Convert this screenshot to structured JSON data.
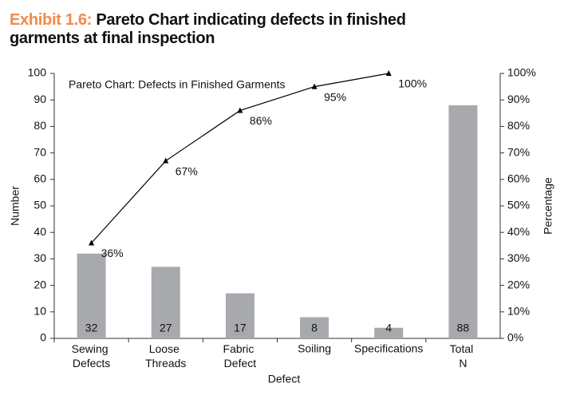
{
  "chart_data": {
    "type": "bar",
    "title_prefix": "Exhibit 1.6:",
    "title": "Pareto Chart indicating defects in finished garments at final inspection",
    "inner_title": "Pareto Chart: Defects in Finished Garments",
    "x_label": "Defect",
    "y_label": "Number",
    "y2_label": "Percentage",
    "categories": [
      "Sewing Defects",
      "Loose Threads",
      "Fabric Defect",
      "Soiling",
      "Specifications",
      "Total N"
    ],
    "series": [
      {
        "type": "bar",
        "color": "#a7a9ac",
        "values": [
          32,
          27,
          17,
          8,
          4,
          88
        ]
      },
      {
        "type": "line",
        "axis": "y2",
        "color": "#000000",
        "values": [
          36,
          67,
          86,
          95,
          100,
          null
        ],
        "value_labels": [
          "36%",
          "67%",
          "86%",
          "95%",
          "100%",
          null
        ]
      }
    ],
    "ylim": [
      0,
      100
    ],
    "yticks": [
      0,
      10,
      20,
      30,
      40,
      50,
      60,
      70,
      80,
      90,
      100
    ],
    "y2lim": [
      0,
      100
    ],
    "y2ticks": [
      {
        "value": 0,
        "label": "0%"
      },
      {
        "value": 10,
        "label": "10%"
      },
      {
        "value": 20,
        "label": "20%"
      },
      {
        "value": 30,
        "label": "30%"
      },
      {
        "value": 40,
        "label": "40%"
      },
      {
        "value": 50,
        "label": "50%"
      },
      {
        "value": 60,
        "label": "60%"
      },
      {
        "value": 70,
        "label": "70%"
      },
      {
        "value": 80,
        "label": "80%"
      },
      {
        "value": 90,
        "label": "90%"
      },
      {
        "value": 100,
        "label": "100%"
      }
    ]
  }
}
